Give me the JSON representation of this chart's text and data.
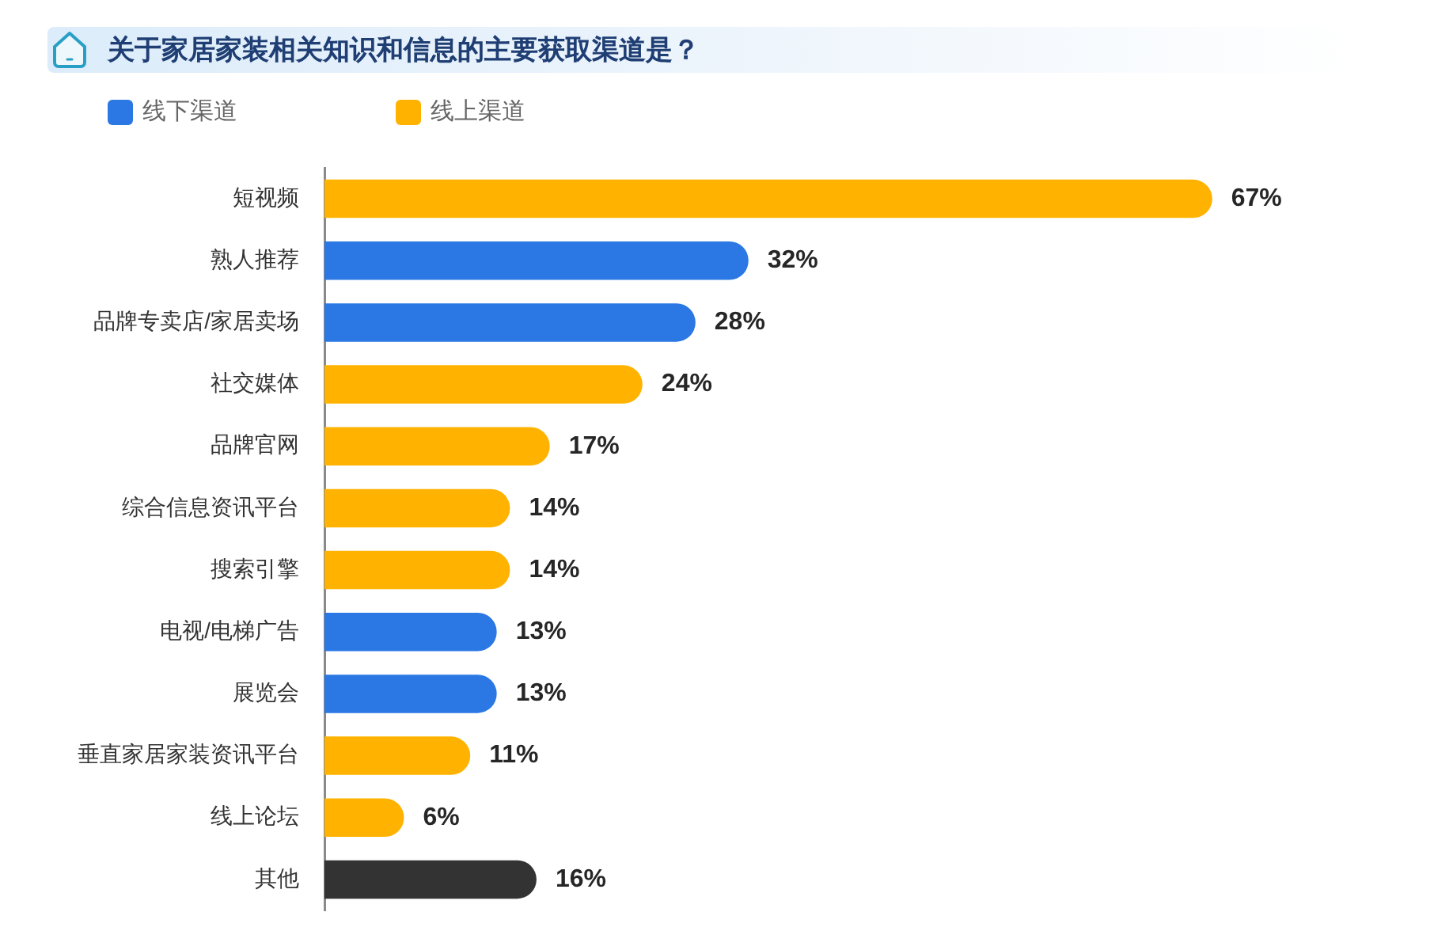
{
  "chart_data": {
    "type": "bar",
    "orientation": "horizontal",
    "title": "关于家居家装相关知识和信息的主要获取渠道是？",
    "categories": [
      "短视频",
      "熟人推荐",
      "品牌专卖店/家居卖场",
      "社交媒体",
      "品牌官网",
      "综合信息资讯平台",
      "搜索引擎",
      "电视/电梯广告",
      "展览会",
      "垂直家居家装资讯平台",
      "线上论坛",
      "其他"
    ],
    "series": [
      {
        "name": "线下渠道",
        "color": "#2b78e4",
        "values": [
          null,
          32,
          28,
          null,
          null,
          null,
          null,
          13,
          13,
          null,
          null,
          null
        ],
        "value_labels": [
          null,
          "32%",
          "28%",
          null,
          null,
          null,
          null,
          "13%",
          "13%",
          null,
          null,
          null
        ]
      },
      {
        "name": "线上渠道",
        "color": "#ffb300",
        "values": [
          67,
          null,
          null,
          24,
          17,
          14,
          14,
          null,
          null,
          11,
          6,
          null
        ],
        "value_labels": [
          "67%",
          null,
          null,
          "24%",
          "17%",
          "14%",
          "14%",
          null,
          null,
          "11%",
          "6%",
          null
        ]
      },
      {
        "color": "#333333",
        "values": [
          null,
          null,
          null,
          null,
          null,
          null,
          null,
          null,
          null,
          null,
          null,
          16
        ],
        "value_labels": [
          null,
          null,
          null,
          null,
          null,
          null,
          null,
          null,
          null,
          null,
          null,
          "16%"
        ]
      }
    ],
    "tick_labels": "y",
    "grid": false,
    "legend": "top left"
  }
}
